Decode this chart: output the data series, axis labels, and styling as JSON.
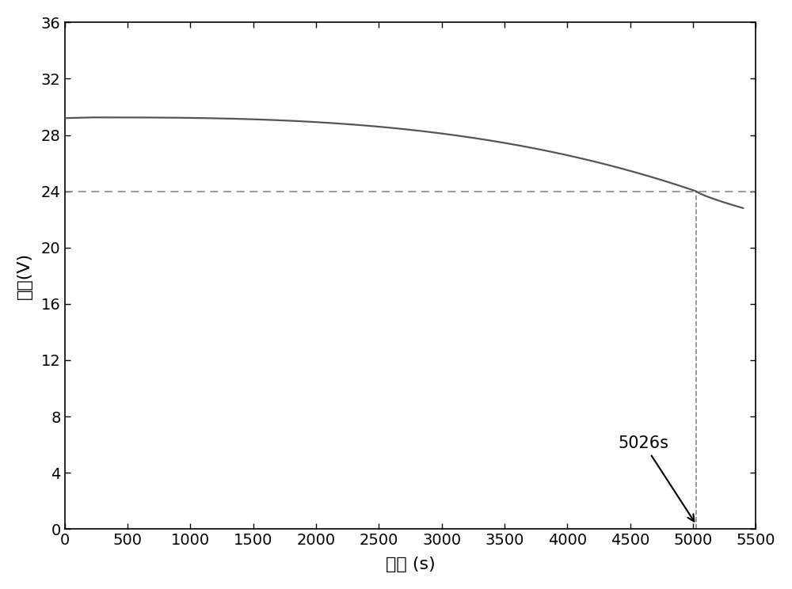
{
  "title": "",
  "xlabel": "时间 (s)",
  "ylabel": "电压(V)",
  "xlim": [
    0,
    5500
  ],
  "ylim": [
    0,
    36
  ],
  "xticks": [
    0,
    500,
    1000,
    1500,
    2000,
    2500,
    3000,
    3500,
    4000,
    4500,
    5000,
    5500
  ],
  "yticks": [
    0,
    4,
    8,
    12,
    16,
    20,
    24,
    28,
    32,
    36
  ],
  "cutoff_time": 5026,
  "cutoff_voltage": 24,
  "start_voltage": 29.25,
  "end_voltage": 22.8,
  "annotation_label": "5026s",
  "line_color": "#555555",
  "dashed_color": "#888888",
  "background_color": "#ffffff",
  "xlabel_fontsize": 16,
  "ylabel_fontsize": 16,
  "tick_fontsize": 14,
  "annotation_fontsize": 15
}
